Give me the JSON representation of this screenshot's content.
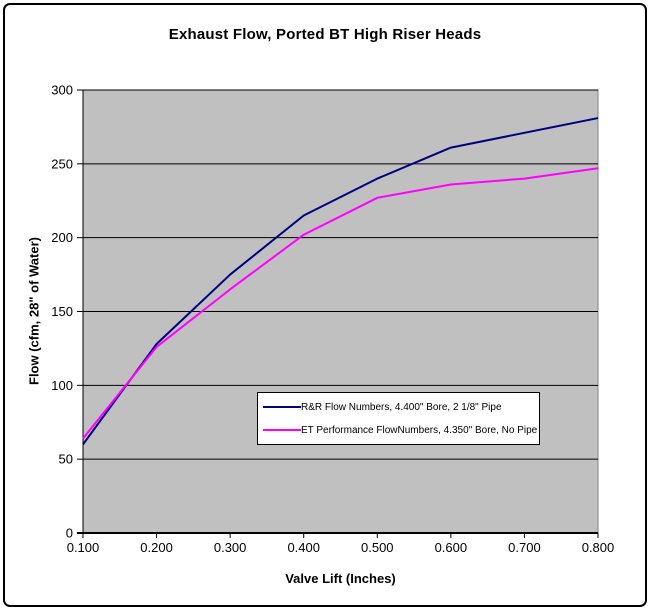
{
  "chart_data": {
    "type": "line",
    "title": "Exhaust Flow, Ported BT High Riser Heads",
    "xlabel": "Valve Lift (Inches)",
    "ylabel": "Flow (cfm, 28\" of Water)",
    "x": [
      0.1,
      0.2,
      0.3,
      0.4,
      0.5,
      0.6,
      0.7,
      0.8
    ],
    "x_tick_labels": [
      "0.100",
      "0.200",
      "0.300",
      "0.400",
      "0.500",
      "0.600",
      "0.700",
      "0.800"
    ],
    "xlim": [
      0.1,
      0.8
    ],
    "y_ticks": [
      0,
      50,
      100,
      150,
      200,
      250,
      300
    ],
    "ylim": [
      0,
      300
    ],
    "grid": "horizontal-major",
    "legend_position": "inside-lower-center",
    "series": [
      {
        "name": "R&R Flow Numbers, 4.400\" Bore, 2 1/8\" Pipe",
        "color": "#000080",
        "values": [
          60,
          128,
          175,
          215,
          240,
          261,
          271,
          281
        ]
      },
      {
        "name": "ET Performance FlowNumbers, 4.350\" Bore, No Pipe",
        "color": "#FF00FF",
        "values": [
          64,
          126,
          165,
          202,
          227,
          236,
          240,
          247
        ]
      }
    ],
    "colors": {
      "plot_background": "#C0C0C0",
      "plot_border": "#808080",
      "gridline": "#000000",
      "axis": "#000000",
      "text": "#000000",
      "legend_background": "#FFFFFF",
      "legend_border": "#000000",
      "outer_border": "#000000"
    }
  }
}
